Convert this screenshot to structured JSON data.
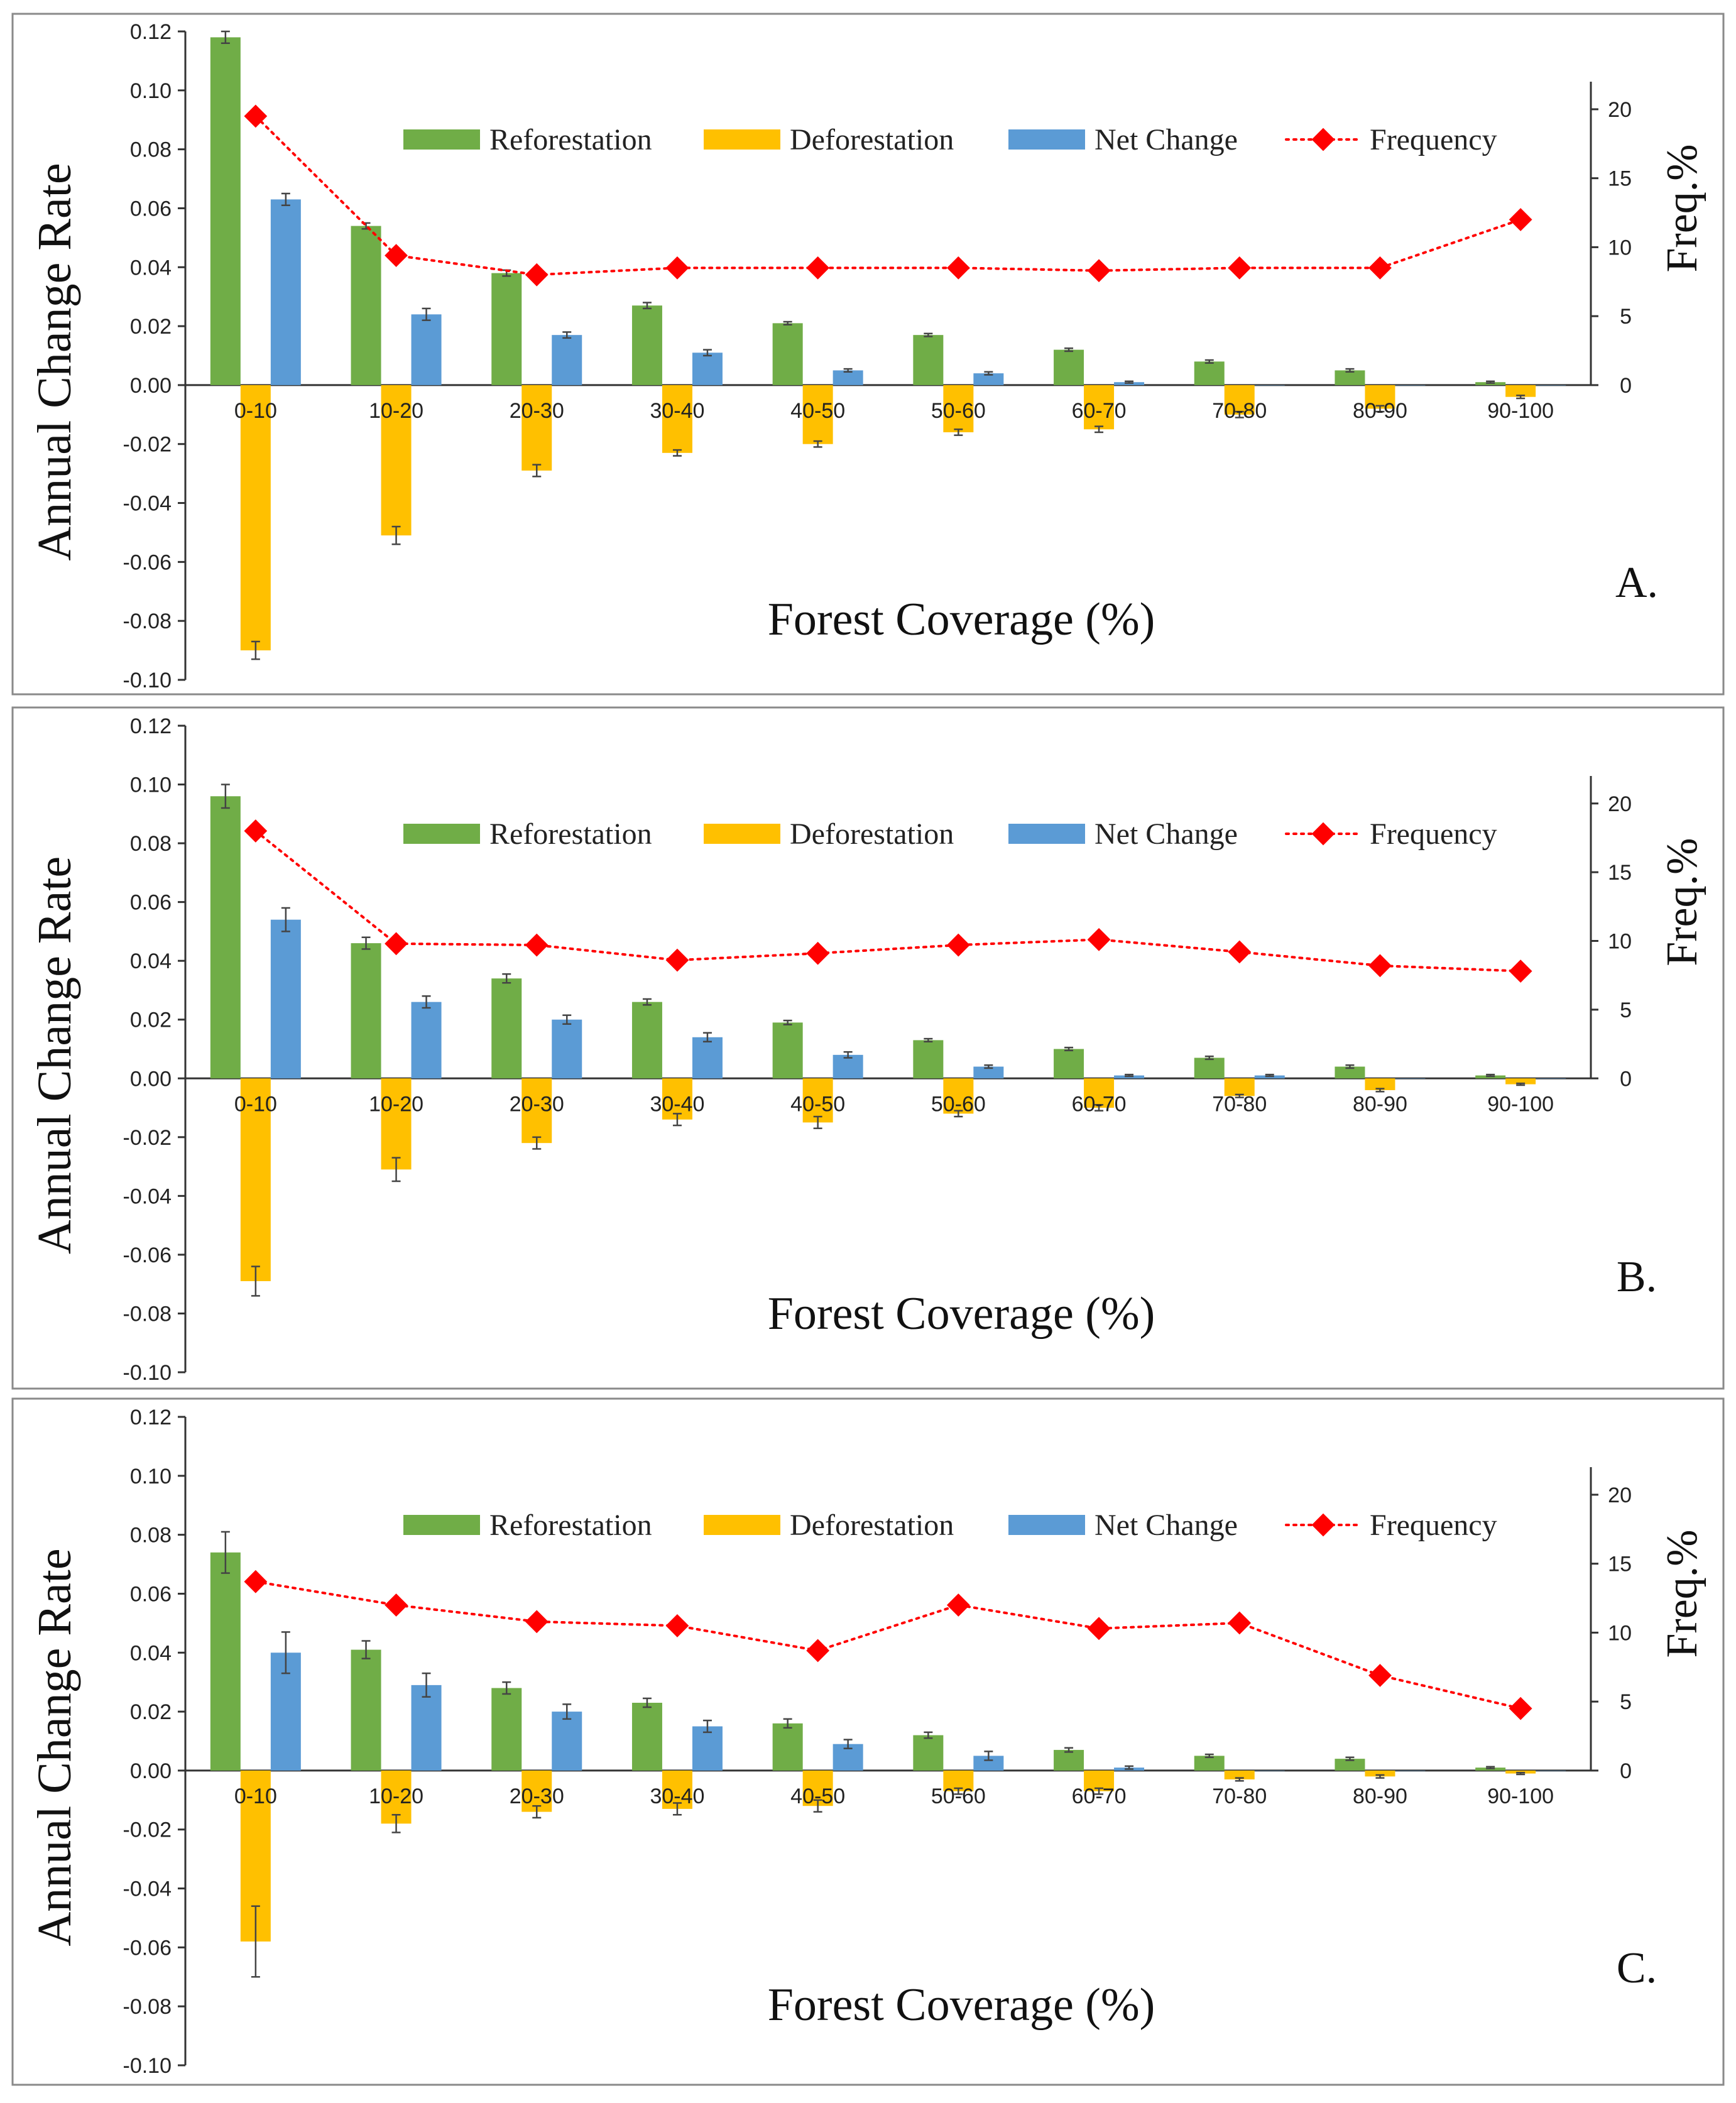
{
  "legend": {
    "reforestation": "Reforestation",
    "deforestation": "Deforestation",
    "net_change": "Net Change",
    "frequency": "Frequency"
  },
  "colors": {
    "reforestation": "#70ad47",
    "deforestation": "#ffc000",
    "net_change": "#5b9bd5",
    "frequency": "#ff0000"
  },
  "chart_data": [
    {
      "type": "bar",
      "panel_label": "A.",
      "xlabel": "Forest Coverage (%)",
      "ylabel": "Annual Change Rate",
      "y2label": "Freq.%",
      "categories": [
        "0-10",
        "10-20",
        "20-30",
        "30-40",
        "40-50",
        "50-60",
        "60-70",
        "70-80",
        "80-90",
        "90-100"
      ],
      "ylim": [
        -0.1,
        0.12
      ],
      "y2lim": [
        0,
        22
      ],
      "yticks": [
        "0.12",
        "0.10",
        "0.08",
        "0.06",
        "0.04",
        "0.02",
        "0.00",
        "-0.02",
        "-0.04",
        "-0.06",
        "-0.08",
        "-0.10"
      ],
      "y2ticks": [
        "20",
        "15",
        "10",
        "5",
        "0"
      ],
      "legend_position": "top",
      "series": [
        {
          "name": "Reforestation",
          "values": [
            0.118,
            0.054,
            0.038,
            0.027,
            0.021,
            0.017,
            0.012,
            0.008,
            0.005,
            0.001
          ],
          "errors": [
            0.002,
            0.001,
            0.001,
            0.001,
            0.0005,
            0.0005,
            0.0005,
            0.0005,
            0.0005,
            0.0003
          ]
        },
        {
          "name": "Deforestation",
          "values": [
            -0.09,
            -0.051,
            -0.029,
            -0.023,
            -0.02,
            -0.016,
            -0.015,
            -0.01,
            -0.008,
            -0.004
          ],
          "errors": [
            0.003,
            0.003,
            0.002,
            0.001,
            0.001,
            0.001,
            0.001,
            0.001,
            0.001,
            0.0005
          ]
        },
        {
          "name": "Net Change",
          "values": [
            0.063,
            0.024,
            0.017,
            0.011,
            0.005,
            0.004,
            0.001,
            0.0,
            0.0,
            0.0
          ],
          "errors": [
            0.002,
            0.002,
            0.001,
            0.001,
            0.0005,
            0.0005,
            0.0003,
            0.0,
            0.0,
            0.0
          ]
        },
        {
          "name": "Frequency",
          "axis": "right",
          "values": [
            19.5,
            9.4,
            8.0,
            8.5,
            8.5,
            8.5,
            8.3,
            8.5,
            8.5,
            12.0
          ]
        }
      ]
    },
    {
      "type": "bar",
      "panel_label": "B.",
      "xlabel": "Forest Coverage (%)",
      "ylabel": "Annual Change Rate",
      "y2label": "Freq.%",
      "categories": [
        "0-10",
        "10-20",
        "20-30",
        "30-40",
        "40-50",
        "50-60",
        "60-70",
        "70-80",
        "80-90",
        "90-100"
      ],
      "ylim": [
        -0.1,
        0.12
      ],
      "y2lim": [
        0,
        22
      ],
      "yticks": [
        "0.12",
        "0.10",
        "0.08",
        "0.06",
        "0.04",
        "0.02",
        "0.00",
        "-0.02",
        "-0.04",
        "-0.06",
        "-0.08",
        "-0.10"
      ],
      "y2ticks": [
        "20",
        "15",
        "10",
        "5",
        "0"
      ],
      "legend_position": "top",
      "series": [
        {
          "name": "Reforestation",
          "values": [
            0.096,
            0.046,
            0.034,
            0.026,
            0.019,
            0.013,
            0.01,
            0.007,
            0.004,
            0.001
          ],
          "errors": [
            0.004,
            0.002,
            0.0015,
            0.001,
            0.0007,
            0.0005,
            0.0005,
            0.0005,
            0.0005,
            0.0003
          ]
        },
        {
          "name": "Deforestation",
          "values": [
            -0.069,
            -0.031,
            -0.022,
            -0.014,
            -0.015,
            -0.012,
            -0.01,
            -0.006,
            -0.004,
            -0.002
          ],
          "errors": [
            0.005,
            0.004,
            0.002,
            0.002,
            0.002,
            0.001,
            0.001,
            0.0005,
            0.0005,
            0.0003
          ]
        },
        {
          "name": "Net Change",
          "values": [
            0.054,
            0.026,
            0.02,
            0.014,
            0.008,
            0.004,
            0.001,
            0.001,
            0.0,
            0.0
          ],
          "errors": [
            0.004,
            0.002,
            0.0015,
            0.0015,
            0.001,
            0.0005,
            0.0003,
            0.0003,
            0.0,
            0.0
          ]
        },
        {
          "name": "Frequency",
          "axis": "right",
          "values": [
            18.0,
            9.8,
            9.7,
            8.6,
            9.1,
            9.7,
            10.1,
            9.2,
            8.2,
            7.8
          ]
        }
      ]
    },
    {
      "type": "bar",
      "panel_label": "C.",
      "xlabel": "Forest Coverage (%)",
      "ylabel": "Annual Change Rate",
      "y2label": "Freq.%",
      "categories": [
        "0-10",
        "10-20",
        "20-30",
        "30-40",
        "40-50",
        "50-60",
        "60-70",
        "70-80",
        "80-90",
        "90-100"
      ],
      "ylim": [
        -0.1,
        0.12
      ],
      "y2lim": [
        0,
        22
      ],
      "yticks": [
        "0.12",
        "0.10",
        "0.08",
        "0.06",
        "0.04",
        "0.02",
        "0.00",
        "-0.02",
        "-0.04",
        "-0.06",
        "-0.08",
        "-0.10"
      ],
      "y2ticks": [
        "20",
        "15",
        "10",
        "5",
        "0"
      ],
      "legend_position": "top",
      "series": [
        {
          "name": "Reforestation",
          "values": [
            0.074,
            0.041,
            0.028,
            0.023,
            0.016,
            0.012,
            0.007,
            0.005,
            0.004,
            0.001
          ],
          "errors": [
            0.007,
            0.003,
            0.002,
            0.0015,
            0.0015,
            0.001,
            0.0007,
            0.0005,
            0.0005,
            0.0003
          ]
        },
        {
          "name": "Deforestation",
          "values": [
            -0.058,
            -0.018,
            -0.014,
            -0.013,
            -0.012,
            -0.007,
            -0.007,
            -0.003,
            -0.002,
            -0.001
          ],
          "errors": [
            0.012,
            0.003,
            0.002,
            0.002,
            0.002,
            0.001,
            0.001,
            0.0005,
            0.0005,
            0.0003
          ]
        },
        {
          "name": "Net Change",
          "values": [
            0.04,
            0.029,
            0.02,
            0.015,
            0.009,
            0.005,
            0.001,
            0.0,
            0.0,
            0.0
          ],
          "errors": [
            0.007,
            0.004,
            0.0025,
            0.002,
            0.0015,
            0.0015,
            0.0005,
            0.0,
            0.0,
            0.0
          ]
        },
        {
          "name": "Frequency",
          "axis": "right",
          "values": [
            13.7,
            12.0,
            10.8,
            10.5,
            8.7,
            12.0,
            10.3,
            10.7,
            6.9,
            4.5
          ]
        }
      ]
    }
  ]
}
